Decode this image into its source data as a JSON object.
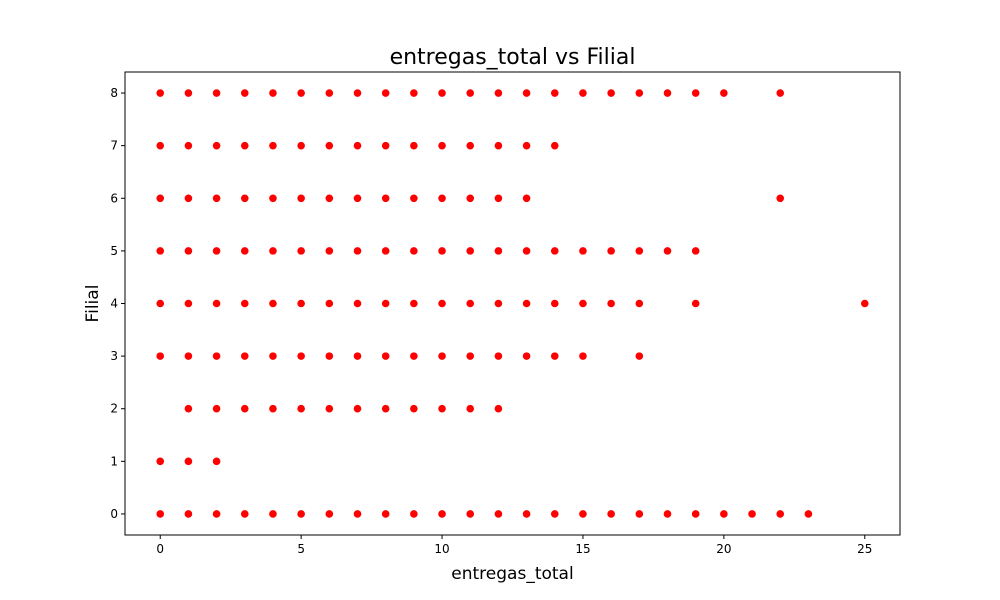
{
  "chart_data": {
    "type": "scatter",
    "title": "entregas_total vs Filial",
    "xlabel": "entregas_total",
    "ylabel": "Filial",
    "xlim": [
      -1.25,
      26.25
    ],
    "ylim": [
      -0.4,
      8.4
    ],
    "xticks": [
      0,
      5,
      10,
      15,
      20,
      25
    ],
    "yticks": [
      0,
      1,
      2,
      3,
      4,
      5,
      6,
      7,
      8
    ],
    "grid": false,
    "legend": "none",
    "marker_color": "#ff0000",
    "points": [
      [
        0,
        8
      ],
      [
        1,
        8
      ],
      [
        2,
        8
      ],
      [
        3,
        8
      ],
      [
        4,
        8
      ],
      [
        5,
        8
      ],
      [
        6,
        8
      ],
      [
        7,
        8
      ],
      [
        8,
        8
      ],
      [
        9,
        8
      ],
      [
        10,
        8
      ],
      [
        11,
        8
      ],
      [
        12,
        8
      ],
      [
        13,
        8
      ],
      [
        14,
        8
      ],
      [
        15,
        8
      ],
      [
        16,
        8
      ],
      [
        17,
        8
      ],
      [
        18,
        8
      ],
      [
        19,
        8
      ],
      [
        20,
        8
      ],
      [
        22,
        8
      ],
      [
        0,
        7
      ],
      [
        1,
        7
      ],
      [
        2,
        7
      ],
      [
        3,
        7
      ],
      [
        4,
        7
      ],
      [
        5,
        7
      ],
      [
        6,
        7
      ],
      [
        7,
        7
      ],
      [
        8,
        7
      ],
      [
        9,
        7
      ],
      [
        10,
        7
      ],
      [
        11,
        7
      ],
      [
        12,
        7
      ],
      [
        13,
        7
      ],
      [
        14,
        7
      ],
      [
        0,
        6
      ],
      [
        1,
        6
      ],
      [
        2,
        6
      ],
      [
        3,
        6
      ],
      [
        4,
        6
      ],
      [
        5,
        6
      ],
      [
        6,
        6
      ],
      [
        7,
        6
      ],
      [
        8,
        6
      ],
      [
        9,
        6
      ],
      [
        10,
        6
      ],
      [
        11,
        6
      ],
      [
        12,
        6
      ],
      [
        13,
        6
      ],
      [
        22,
        6
      ],
      [
        0,
        5
      ],
      [
        1,
        5
      ],
      [
        2,
        5
      ],
      [
        3,
        5
      ],
      [
        4,
        5
      ],
      [
        5,
        5
      ],
      [
        6,
        5
      ],
      [
        7,
        5
      ],
      [
        8,
        5
      ],
      [
        9,
        5
      ],
      [
        10,
        5
      ],
      [
        11,
        5
      ],
      [
        12,
        5
      ],
      [
        13,
        5
      ],
      [
        14,
        5
      ],
      [
        15,
        5
      ],
      [
        16,
        5
      ],
      [
        17,
        5
      ],
      [
        18,
        5
      ],
      [
        19,
        5
      ],
      [
        0,
        4
      ],
      [
        1,
        4
      ],
      [
        2,
        4
      ],
      [
        3,
        4
      ],
      [
        4,
        4
      ],
      [
        5,
        4
      ],
      [
        6,
        4
      ],
      [
        7,
        4
      ],
      [
        8,
        4
      ],
      [
        9,
        4
      ],
      [
        10,
        4
      ],
      [
        11,
        4
      ],
      [
        12,
        4
      ],
      [
        13,
        4
      ],
      [
        14,
        4
      ],
      [
        15,
        4
      ],
      [
        16,
        4
      ],
      [
        17,
        4
      ],
      [
        19,
        4
      ],
      [
        25,
        4
      ],
      [
        0,
        3
      ],
      [
        1,
        3
      ],
      [
        2,
        3
      ],
      [
        3,
        3
      ],
      [
        4,
        3
      ],
      [
        5,
        3
      ],
      [
        6,
        3
      ],
      [
        7,
        3
      ],
      [
        8,
        3
      ],
      [
        9,
        3
      ],
      [
        10,
        3
      ],
      [
        11,
        3
      ],
      [
        12,
        3
      ],
      [
        13,
        3
      ],
      [
        14,
        3
      ],
      [
        15,
        3
      ],
      [
        17,
        3
      ],
      [
        1,
        2
      ],
      [
        2,
        2
      ],
      [
        3,
        2
      ],
      [
        4,
        2
      ],
      [
        5,
        2
      ],
      [
        6,
        2
      ],
      [
        7,
        2
      ],
      [
        8,
        2
      ],
      [
        9,
        2
      ],
      [
        10,
        2
      ],
      [
        11,
        2
      ],
      [
        12,
        2
      ],
      [
        0,
        1
      ],
      [
        1,
        1
      ],
      [
        2,
        1
      ],
      [
        0,
        0
      ],
      [
        1,
        0
      ],
      [
        2,
        0
      ],
      [
        3,
        0
      ],
      [
        4,
        0
      ],
      [
        5,
        0
      ],
      [
        6,
        0
      ],
      [
        7,
        0
      ],
      [
        8,
        0
      ],
      [
        9,
        0
      ],
      [
        10,
        0
      ],
      [
        11,
        0
      ],
      [
        12,
        0
      ],
      [
        13,
        0
      ],
      [
        14,
        0
      ],
      [
        15,
        0
      ],
      [
        16,
        0
      ],
      [
        17,
        0
      ],
      [
        18,
        0
      ],
      [
        19,
        0
      ],
      [
        20,
        0
      ],
      [
        21,
        0
      ],
      [
        22,
        0
      ],
      [
        23,
        0
      ]
    ]
  }
}
